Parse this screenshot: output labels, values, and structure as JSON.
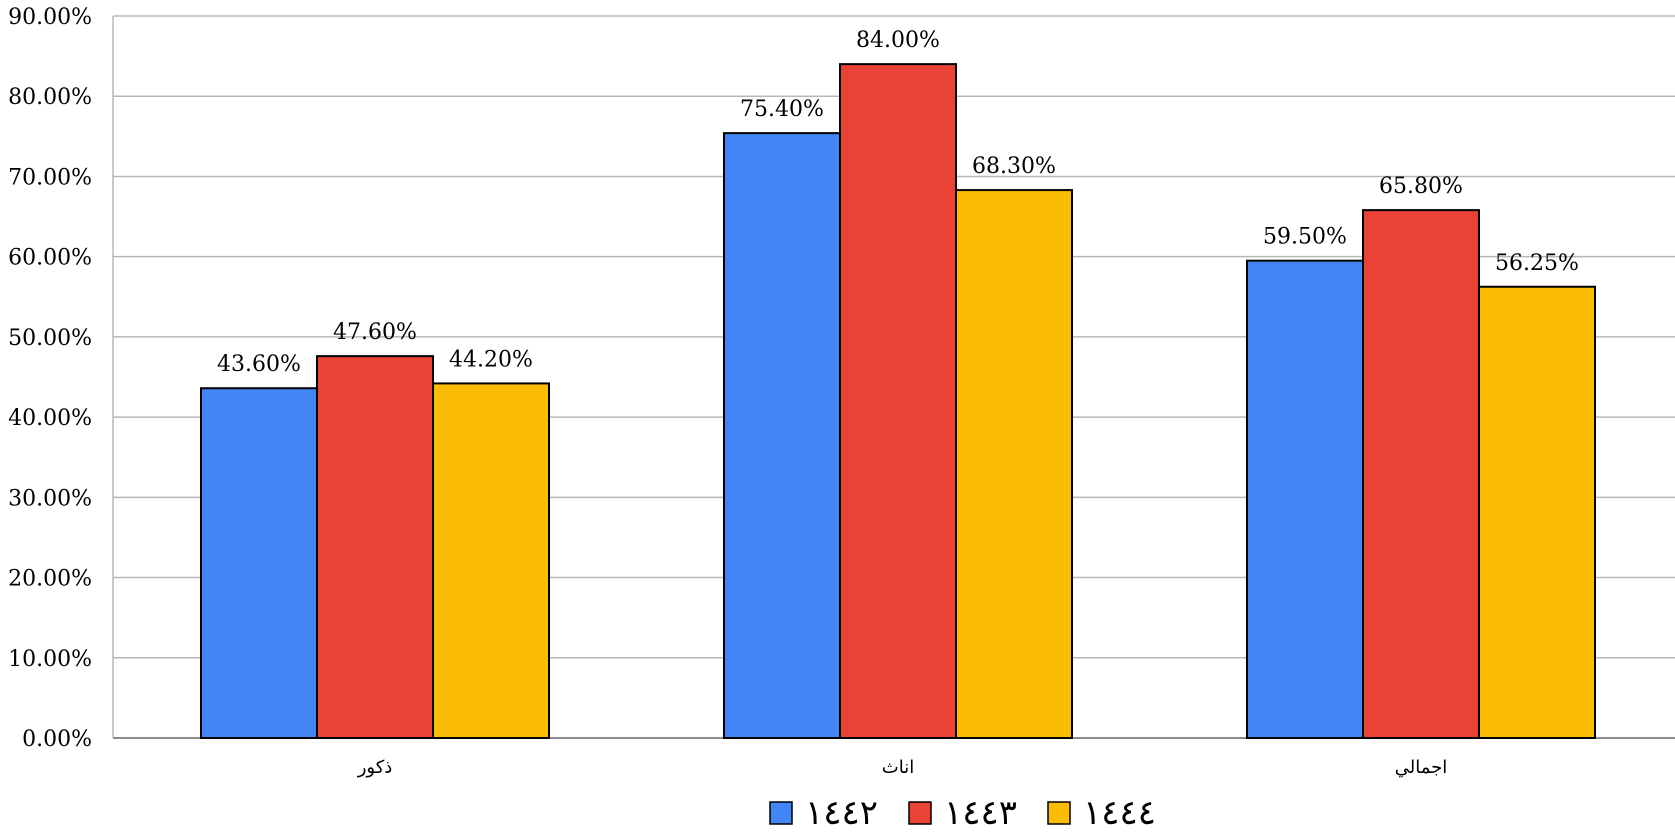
{
  "chart_data": {
    "type": "bar",
    "categories": [
      "ذكور",
      "اناث",
      "اجمالي"
    ],
    "series": [
      {
        "name": "١٤٤٢",
        "color": "#4285F4",
        "values": [
          43.6,
          75.4,
          59.5
        ],
        "labels": [
          "43.60%",
          "75.40%",
          "59.50%"
        ]
      },
      {
        "name": "١٤٤٣",
        "color": "#EA4335",
        "values": [
          47.6,
          84.0,
          65.8
        ],
        "labels": [
          "47.60%",
          "84.00%",
          "65.80%"
        ]
      },
      {
        "name": "١٤٤٤",
        "color": "#FBBC04",
        "values": [
          44.2,
          68.3,
          56.25
        ],
        "labels": [
          "44.20%",
          "68.30%",
          "56.25%"
        ]
      }
    ],
    "yticks": [
      "0.00%",
      "10.00%",
      "20.00%",
      "30.00%",
      "40.00%",
      "50.00%",
      "60.00%",
      "70.00%",
      "80.00%",
      "90.00%"
    ],
    "ylim": [
      0,
      90
    ],
    "grid": true,
    "legend_position": "bottom",
    "title": "",
    "xlabel": "",
    "ylabel": ""
  }
}
